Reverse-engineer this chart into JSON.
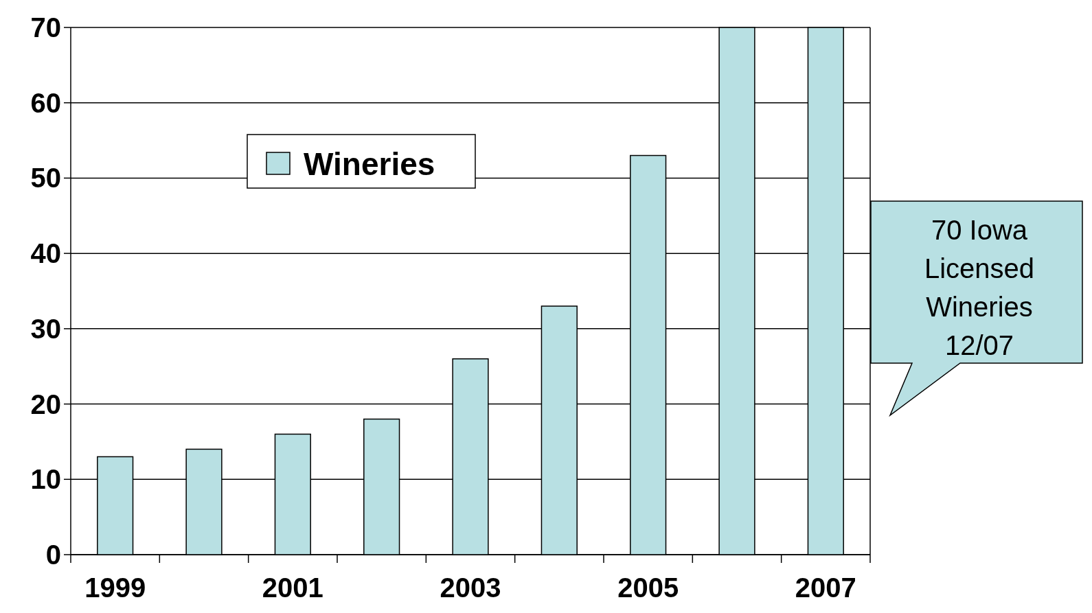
{
  "chart_data": {
    "type": "bar",
    "categories": [
      "1999",
      null,
      "2001",
      null,
      "2003",
      null,
      "2005",
      null,
      "2007"
    ],
    "series": [
      {
        "name": "Wineries",
        "color": "#b8e0e3",
        "values": [
          13,
          14,
          16,
          18,
          26,
          33,
          53,
          70,
          70
        ]
      }
    ],
    "ylim": [
      0,
      70
    ],
    "yticks": [
      0,
      10,
      20,
      30,
      40,
      50,
      60,
      70
    ],
    "grid": "y",
    "legend": "top left",
    "annotations": [
      "70 Iowa Licensed Wineries 12/07"
    ]
  }
}
